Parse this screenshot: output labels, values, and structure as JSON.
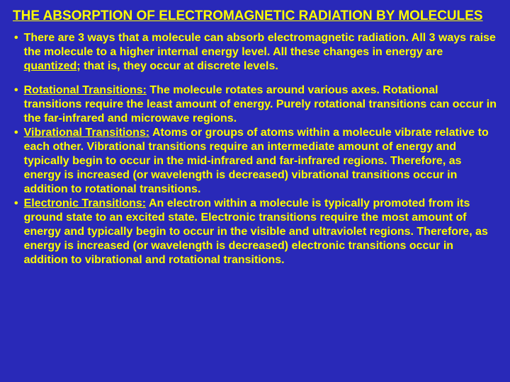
{
  "slide": {
    "title": "THE ABSORPTION OF ELECTROMAGNETIC RADIATION BY MOLECULES",
    "intro": {
      "pre": "There are 3 ways that a molecule can absorb electromagnetic radiation. All 3 ways raise the molecule to a higher internal energy level.  All these changes in energy are ",
      "quantized": "quantized",
      "post": "; that is, they occur at discrete levels."
    },
    "items": [
      {
        "heading": "Rotational Transitions:",
        "body": " The molecule rotates around various axes. Rotational transitions require the least amount of energy.  Purely rotational transitions can occur in the far-infrared and microwave regions."
      },
      {
        "heading": "Vibrational Transitions:",
        "body": " Atoms or groups of atoms within a molecule vibrate relative to each other.  Vibrational transitions require an intermediate amount of energy and typically begin to occur in the mid-infrared and far-infrared regions.  Therefore, as energy is increased (or wavelength is decreased) vibrational transitions occur in addition to rotational transitions."
      },
      {
        "heading": "Electronic Transitions:",
        "body": " An electron within a molecule is typically promoted from its ground state to an excited state.  Electronic transitions require the most amount of energy and typically begin to occur in the visible and ultraviolet regions.  Therefore, as energy is increased (or wavelength is decreased) electronic transitions occur in addition to vibrational and rotational transitions."
      }
    ],
    "styling": {
      "background_color": "#2929b8",
      "text_color": "#ffff00",
      "title_fontsize": 19,
      "body_fontsize": 16,
      "font_weight": "bold",
      "font_family": "Arial"
    }
  }
}
